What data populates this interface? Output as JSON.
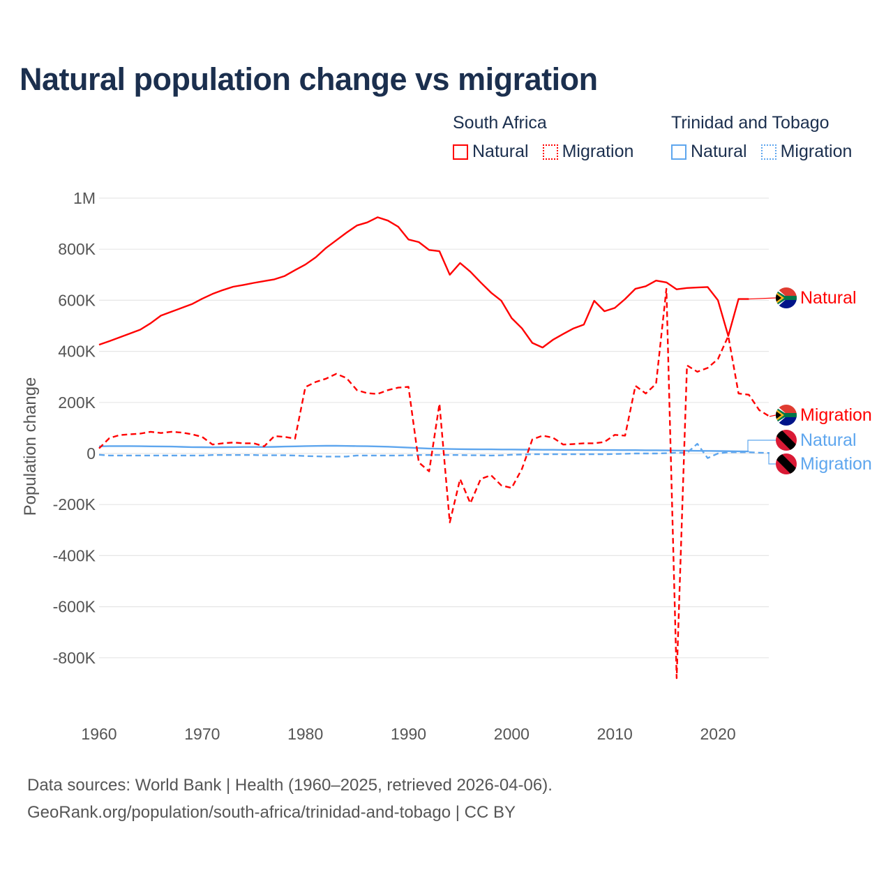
{
  "title": "Natural population change vs migration",
  "legend": {
    "groups": [
      {
        "country": "South Africa",
        "items": [
          {
            "label": "Natural",
            "style": "solid"
          },
          {
            "label": "Migration",
            "style": "dotted"
          }
        ],
        "color": "#ff0000"
      },
      {
        "country": "Trinidad and Tobago",
        "items": [
          {
            "label": "Natural",
            "style": "solid"
          },
          {
            "label": "Migration",
            "style": "dotted"
          }
        ],
        "color": "#5ea6ee"
      }
    ]
  },
  "footer": {
    "line1": "Data sources: World Bank | Health (1960–2025, retrieved 2026-04-06).",
    "line2": "GeoRank.org/population/south-africa/trinidad-and-tobago | CC BY"
  },
  "chart_data": {
    "type": "line",
    "title": "Natural population change vs migration",
    "xlabel": "",
    "ylabel": "Population change",
    "xlim": [
      1960,
      2025
    ],
    "ylim": [
      -1000000,
      1000000
    ],
    "x_ticks": [
      1960,
      1970,
      1980,
      1990,
      2000,
      2010,
      2020
    ],
    "x_tick_labels": [
      "1960",
      "1970",
      "1980",
      "1990",
      "2000",
      "2010",
      "2020"
    ],
    "y_ticks": [
      1000000,
      800000,
      600000,
      400000,
      200000,
      0,
      -200000,
      -400000,
      -600000,
      -800000
    ],
    "y_tick_labels": [
      "1M",
      "800K",
      "600K",
      "400K",
      "200K",
      "0",
      "-200K",
      "-400K",
      "-600K",
      "-800K"
    ],
    "grid": true,
    "legend_position": "top-right",
    "series": [
      {
        "name": "South Africa Natural",
        "label": "Natural",
        "country": "South Africa",
        "color": "#ff0000",
        "dash": false,
        "flag": "south-africa",
        "start": 1960,
        "values": [
          426000,
          440000,
          455000,
          470000,
          485000,
          510000,
          540000,
          555000,
          570000,
          585000,
          606000,
          625000,
          640000,
          653000,
          660000,
          668000,
          675000,
          682000,
          695000,
          718000,
          740000,
          768000,
          805000,
          835000,
          865000,
          893000,
          905000,
          925000,
          912000,
          888000,
          838000,
          828000,
          797000,
          792000,
          700000,
          746000,
          712000,
          670000,
          630000,
          598000,
          530000,
          490000,
          433000,
          415000,
          445000,
          468000,
          490000,
          505000,
          598000,
          557000,
          570000,
          605000,
          645000,
          655000,
          677000,
          670000,
          643000,
          648000,
          650000,
          652000,
          600000,
          460000,
          605000,
          605000
        ]
      },
      {
        "name": "South Africa Migration",
        "label": "Migration",
        "country": "South Africa",
        "color": "#ff0000",
        "dash": true,
        "flag": "south-africa",
        "start": 1960,
        "values": [
          20000,
          60000,
          72000,
          75000,
          78000,
          85000,
          80000,
          85000,
          82000,
          75000,
          65000,
          35000,
          40000,
          43000,
          40000,
          40000,
          28000,
          68000,
          65000,
          58000,
          260000,
          280000,
          293000,
          312000,
          295000,
          248000,
          236000,
          233000,
          248000,
          258000,
          261000,
          -35000,
          -70000,
          195000,
          -270000,
          -100000,
          -195000,
          -100000,
          -85000,
          -125000,
          -135000,
          -60000,
          55000,
          70000,
          62000,
          35000,
          37000,
          40000,
          40000,
          45000,
          73000,
          70000,
          265000,
          235000,
          273000,
          645000,
          -880000,
          345000,
          320000,
          335000,
          370000,
          460000,
          235000,
          230000,
          170000,
          145000
        ]
      },
      {
        "name": "Trinidad and Tobago Natural",
        "label": "Natural",
        "country": "Trinidad and Tobago",
        "color": "#5ea6ee",
        "dash": false,
        "flag": "trinidad-and-tobago",
        "start": 1960,
        "values": [
          28000,
          29000,
          29000,
          29000,
          28500,
          28000,
          27500,
          27000,
          26000,
          25000,
          24500,
          24000,
          24500,
          25000,
          25500,
          25500,
          25500,
          26000,
          27000,
          28000,
          29000,
          29500,
          30000,
          30000,
          29500,
          29000,
          28500,
          27500,
          26500,
          25000,
          23000,
          21000,
          19500,
          18500,
          17500,
          17000,
          16500,
          16000,
          16000,
          15500,
          15500,
          15000,
          15000,
          14500,
          14500,
          14000,
          14000,
          14000,
          14000,
          13500,
          13500,
          13000,
          13000,
          12500,
          12500,
          12000,
          11500,
          11000,
          10500,
          10000,
          9500,
          9000,
          8500,
          8000
        ]
      },
      {
        "name": "Trinidad and Tobago Migration",
        "label": "Migration",
        "country": "Trinidad and Tobago",
        "color": "#5ea6ee",
        "dash": true,
        "flag": "trinidad-and-tobago",
        "start": 1960,
        "values": [
          -5000,
          -8000,
          -8000,
          -8000,
          -8000,
          -8000,
          -8000,
          -8000,
          -8000,
          -8000,
          -8000,
          -6000,
          -6000,
          -6000,
          -6000,
          -6000,
          -7000,
          -7000,
          -7000,
          -8000,
          -10000,
          -11000,
          -12000,
          -12000,
          -12000,
          -8000,
          -8000,
          -8000,
          -8000,
          -8000,
          -7000,
          -6000,
          -6000,
          -6000,
          -6000,
          -6000,
          -7000,
          -7000,
          -8000,
          -7000,
          -5000,
          -4000,
          -3000,
          -3000,
          -3000,
          -3000,
          -3000,
          -3000,
          -3000,
          -3000,
          -2000,
          -1000,
          0,
          0,
          0,
          1000,
          3000,
          2000,
          38000,
          -18000,
          0,
          5000,
          5000,
          5000,
          3000,
          2000
        ]
      }
    ],
    "end_labels": [
      {
        "text": "Natural",
        "series": 0
      },
      {
        "text": "Migration",
        "series": 1
      },
      {
        "text": "Natural",
        "series": 2
      },
      {
        "text": "Migration",
        "series": 3
      }
    ]
  }
}
